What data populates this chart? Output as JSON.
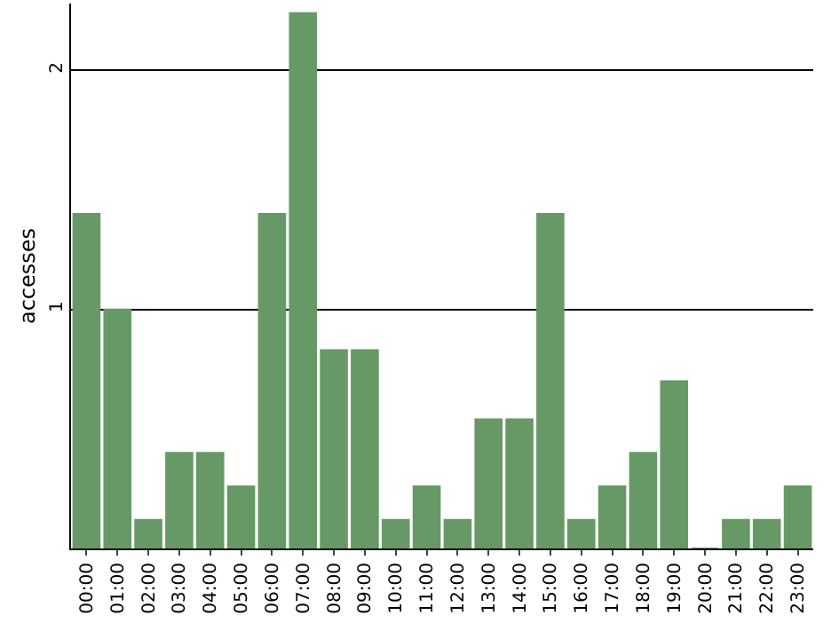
{
  "chart_data": {
    "type": "bar",
    "ylabel": "accesses",
    "categories": [
      "00:00",
      "01:00",
      "02:00",
      "03:00",
      "04:00",
      "05:00",
      "06:00",
      "07:00",
      "08:00",
      "09:00",
      "10:00",
      "11:00",
      "12:00",
      "13:00",
      "14:00",
      "15:00",
      "16:00",
      "17:00",
      "18:00",
      "19:00",
      "20:00",
      "21:00",
      "22:00",
      "23:00"
    ],
    "values": [
      1.4,
      1.0,
      0.12,
      0.4,
      0.4,
      0.26,
      1.4,
      2.24,
      0.83,
      0.83,
      0.12,
      0.26,
      0.12,
      0.54,
      0.54,
      1.4,
      0.12,
      0.26,
      0.4,
      0.7,
      0,
      0.12,
      0.12,
      0.26
    ],
    "color": "#669966",
    "ylim": [
      0,
      2.28
    ],
    "yticks": [
      1,
      2
    ],
    "grid": "y"
  }
}
